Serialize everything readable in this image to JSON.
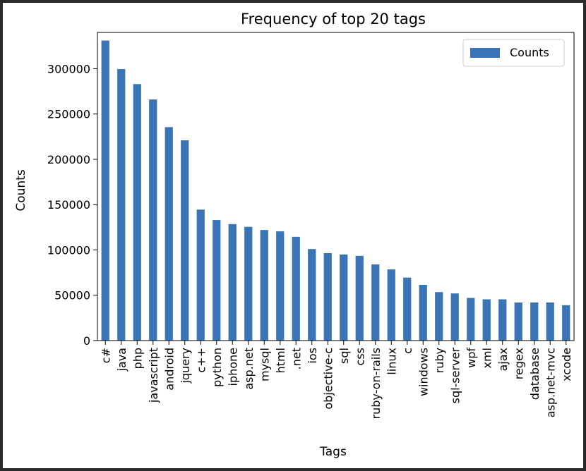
{
  "chart_data": {
    "type": "bar",
    "title": "Frequency of top 20 tags",
    "xlabel": "Tags",
    "ylabel": "Counts",
    "ylim": [
      0,
      340000
    ],
    "yticks": [
      0,
      50000,
      100000,
      150000,
      200000,
      250000,
      300000
    ],
    "legend_position": "top-right",
    "grid": false,
    "colors": {
      "bar": "#3b74b5"
    },
    "categories": [
      "c#",
      "java",
      "php",
      "javascript",
      "android",
      "jquery",
      "c++",
      "python",
      "iphone",
      "asp.net",
      "mysql",
      "html",
      ".net",
      "ios",
      "objective-c",
      "sql",
      "css",
      "ruby-on-rails",
      "linux",
      "c",
      "windows",
      "ruby",
      "sql-server",
      "wpf",
      "xml",
      "ajax",
      "regex",
      "database",
      "asp.net-mvc",
      "xcode"
    ],
    "series": [
      {
        "name": "Counts",
        "values": [
          331000,
          299500,
          283000,
          266000,
          235500,
          221000,
          144500,
          133000,
          128500,
          125500,
          122000,
          120500,
          114500,
          101000,
          96500,
          95000,
          93500,
          84000,
          78500,
          69500,
          61500,
          53500,
          52000,
          47000,
          45500,
          45500,
          42000,
          42000,
          42000,
          39000
        ]
      }
    ]
  }
}
